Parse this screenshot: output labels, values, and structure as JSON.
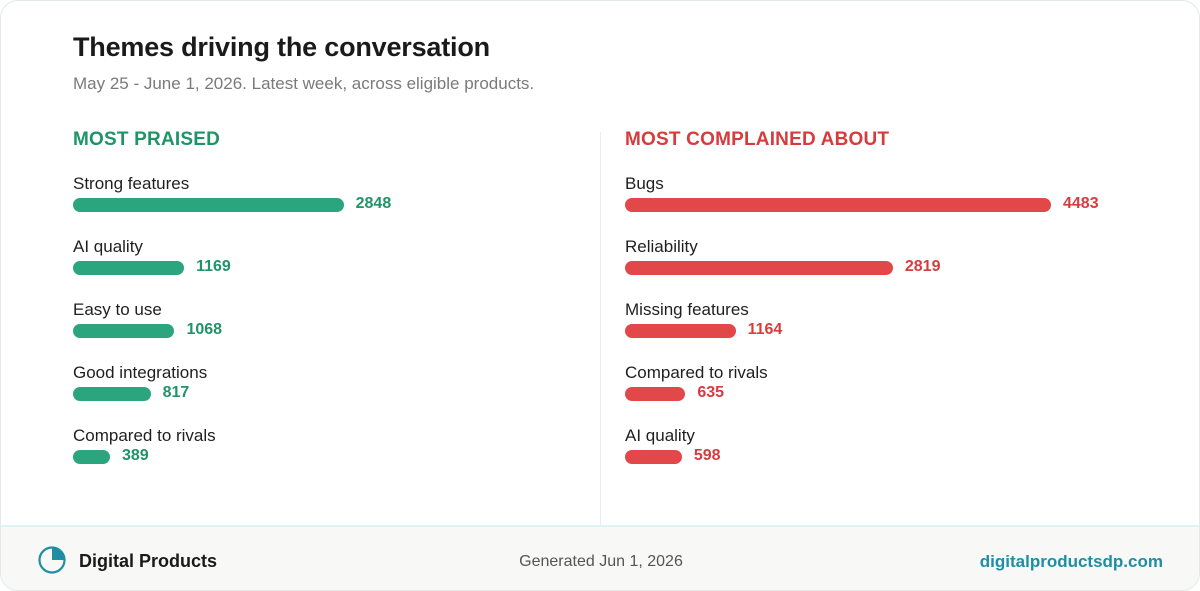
{
  "header": {
    "title": "Themes driving the conversation",
    "subtitle": "May 25 - June 1, 2026. Latest week, across eligible products."
  },
  "colors": {
    "praised": "#2aa57e",
    "praised_text": "#1f9467",
    "complained": "#e2474a",
    "complained_text": "#d83b3e",
    "accent": "#1f8ea5"
  },
  "chart_data": [
    {
      "type": "bar",
      "orientation": "horizontal",
      "title": "MOST PRAISED",
      "categories": [
        "Strong features",
        "AI quality",
        "Easy to use",
        "Good integrations",
        "Compared to rivals"
      ],
      "values": [
        2848,
        1169,
        1068,
        817,
        389
      ]
    },
    {
      "type": "bar",
      "orientation": "horizontal",
      "title": "MOST COMPLAINED ABOUT",
      "categories": [
        "Bugs",
        "Reliability",
        "Missing features",
        "Compared to rivals",
        "AI quality"
      ],
      "values": [
        4483,
        2819,
        1164,
        635,
        598
      ]
    }
  ],
  "footer": {
    "brand_name": "Digital Products",
    "brand_icon": "pie-chart-icon",
    "generated": "Generated Jun 1, 2026",
    "site": "digitalproductsdp.com"
  }
}
